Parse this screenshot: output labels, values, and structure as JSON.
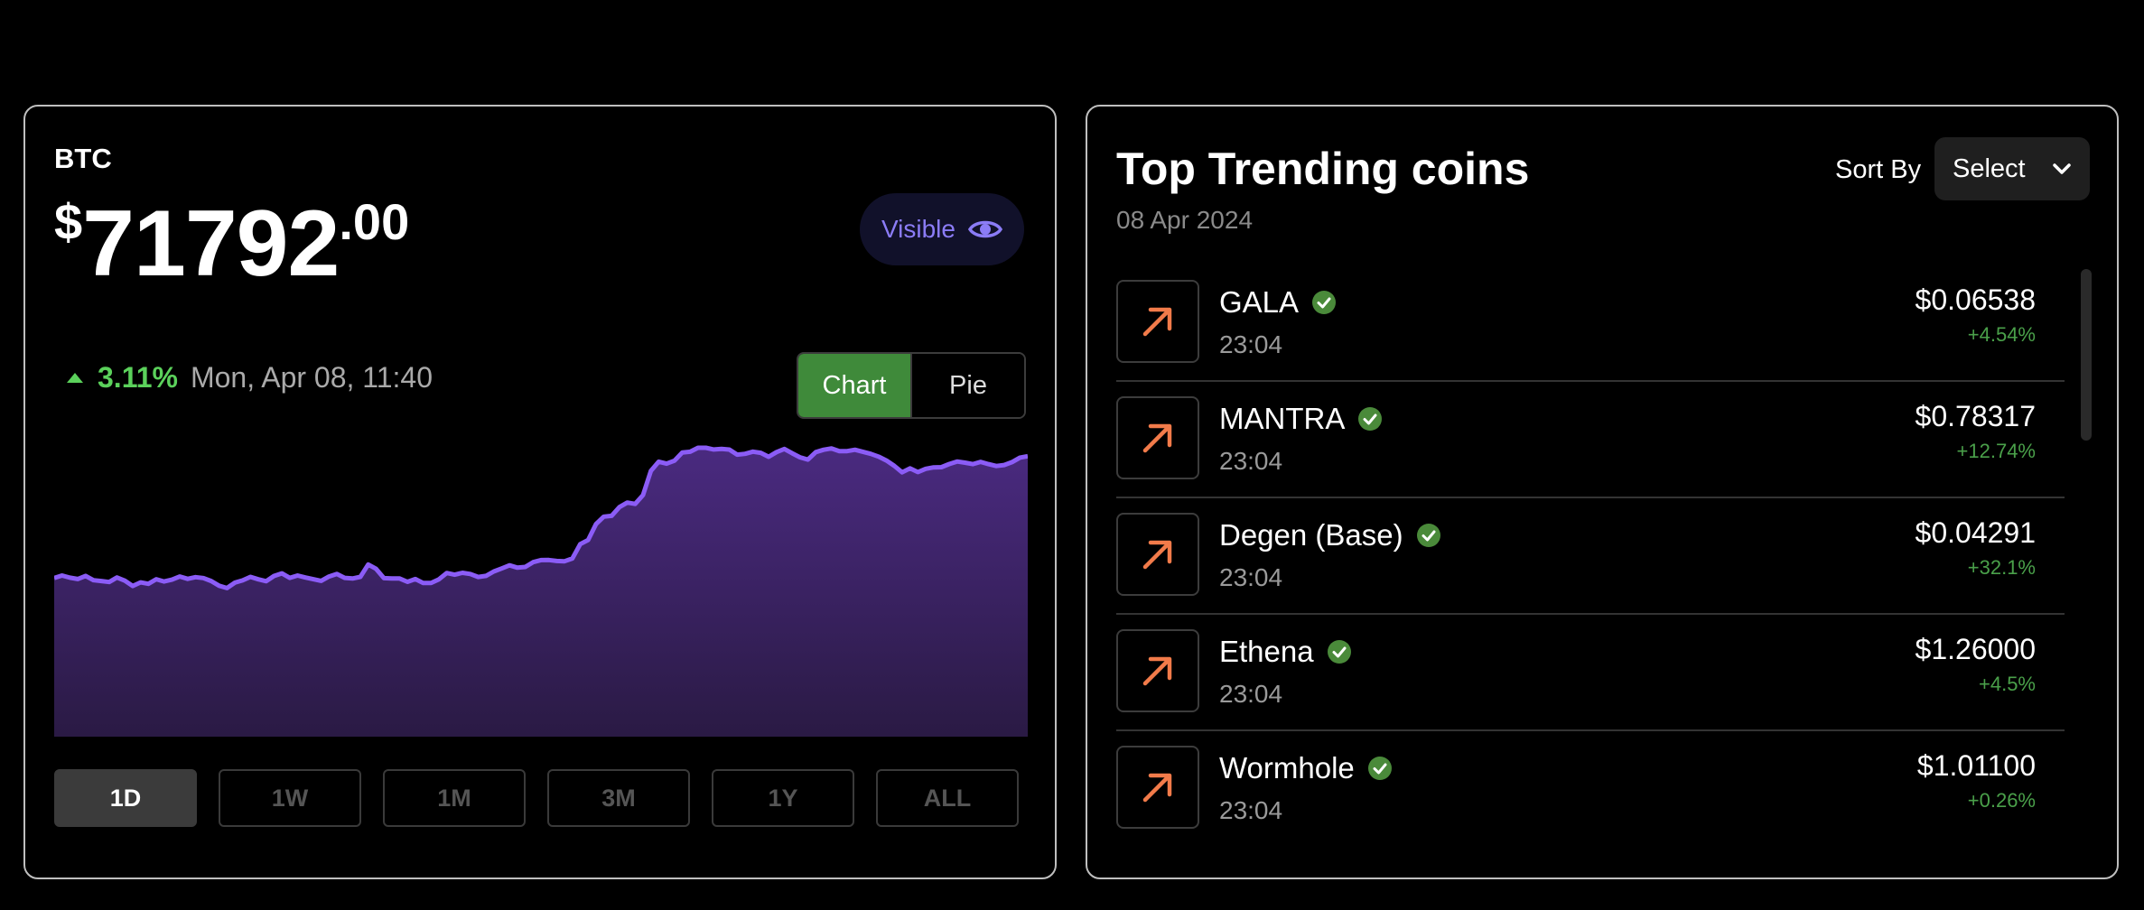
{
  "btc": {
    "symbol": "BTC",
    "price_currency": "$",
    "price_integer": "71792",
    "price_decimal": ".00",
    "visibility_label": "Visible",
    "change_percent": "3.11%",
    "timestamp": "Mon, Apr 08, 11:40",
    "view_toggle": {
      "chart_label": "Chart",
      "pie_label": "Pie",
      "selected": "Chart"
    },
    "ranges": [
      "1D",
      "1W",
      "1M",
      "3M",
      "1Y",
      "ALL"
    ],
    "active_range": "1D"
  },
  "chart_data": {
    "type": "area",
    "color": "#8b5cf6",
    "y": [
      94.9,
      96.4,
      95.1,
      94.3,
      96.2,
      93.6,
      93.1,
      92.5,
      95.2,
      93.3,
      90.1,
      92.3,
      91.4,
      94.2,
      92.8,
      93.9,
      95.8,
      94.4,
      95.4,
      94.9,
      93.1,
      90.3,
      88.9,
      92.1,
      93.5,
      95.6,
      94.1,
      93.0,
      96.1,
      97.7,
      95.0,
      96.4,
      95.2,
      94.2,
      93.2,
      95.8,
      97.3,
      95.0,
      94.6,
      95.6,
      103.0,
      100.4,
      94.8,
      94.6,
      94.6,
      92.6,
      94.3,
      91.9,
      91.9,
      94.1,
      97.9,
      96.9,
      98.0,
      97.3,
      95.5,
      96.2,
      98.8,
      100.6,
      102.5,
      101.1,
      101.5,
      104.4,
      105.6,
      105.7,
      105.1,
      104.9,
      106.6,
      115.2,
      117.6,
      127.1,
      131.6,
      132.1,
      137.3,
      140.0,
      139.2,
      144.5,
      159.0,
      164.5,
      163.3,
      165.1,
      170.0,
      170.4,
      172.8,
      172.8,
      171.8,
      172.1,
      171.7,
      168.7,
      169.2,
      170.5,
      169.8,
      167.4,
      170.2,
      172.1,
      169.5,
      167.1,
      165.7,
      170.2,
      171.6,
      172.4,
      170.8,
      170.8,
      171.6,
      170.4,
      169.2,
      167.5,
      165.2,
      162.0,
      158.1,
      160.5,
      158.3,
      160.2,
      161.1,
      161.2,
      163.1,
      164.6,
      163.9,
      163.0,
      164.4,
      163.0,
      161.9,
      162.5,
      164.2,
      166.9,
      167.8
    ]
  },
  "trending": {
    "title": "Top Trending coins",
    "date": "08 Apr 2024",
    "sort_label": "Sort By",
    "sort_select": "Select",
    "coins": [
      {
        "name": "GALA",
        "time": "23:04",
        "price": "$0.06538",
        "change": "+4.54%"
      },
      {
        "name": "MANTRA",
        "time": "23:04",
        "price": "$0.78317",
        "change": "+12.74%"
      },
      {
        "name": "Degen (Base)",
        "time": "23:04",
        "price": "$0.04291",
        "change": "+32.1%"
      },
      {
        "name": "Ethena",
        "time": "23:04",
        "price": "$1.26000",
        "change": "+4.5%"
      },
      {
        "name": "Wormhole",
        "time": "23:04",
        "price": "$1.01100",
        "change": "+0.26%"
      }
    ]
  },
  "icons": {
    "eye": "eye-icon",
    "chevron": "chevron-down-icon",
    "trend": "trending-up-arrow-icon",
    "verified": "verified-check-icon"
  },
  "colors": {
    "positive": "#5bd15b",
    "accent_purple": "#8b5cf6",
    "chart_toggle_active": "#3f8a3a",
    "trend_arrow": "#f27b4a",
    "verified": "#4a8a3a"
  }
}
